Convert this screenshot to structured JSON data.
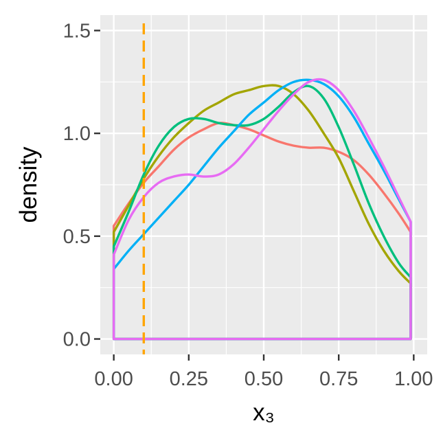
{
  "chart_data": {
    "type": "line",
    "xlabel": "x₃",
    "ylabel": "density",
    "xlim": [
      -0.045,
      1.045
    ],
    "ylim": [
      -0.075,
      1.575
    ],
    "x_ticks": [
      "0.00",
      "0.25",
      "0.50",
      "0.75",
      "1.00"
    ],
    "x_tick_values": [
      0,
      0.25,
      0.5,
      0.75,
      1.0
    ],
    "y_ticks": [
      "0.0",
      "0.5",
      "1.0",
      "1.5"
    ],
    "y_tick_values": [
      0,
      0.5,
      1.0,
      1.5
    ],
    "grid": true,
    "legend": "none",
    "reference_line": {
      "x": 0.1,
      "color": "#FFA500",
      "style": "dashed"
    },
    "x_range": [
      0.0,
      0.99
    ],
    "series": [
      {
        "color": "#F8766D",
        "x": [
          0,
          0.05,
          0.1,
          0.15,
          0.2,
          0.25,
          0.3,
          0.35,
          0.4,
          0.45,
          0.5,
          0.55,
          0.6,
          0.65,
          0.7,
          0.75,
          0.8,
          0.85,
          0.9,
          0.95,
          0.99
        ],
        "y": [
          0.55,
          0.66,
          0.76,
          0.84,
          0.92,
          0.98,
          1.02,
          1.05,
          1.04,
          1.02,
          0.99,
          0.96,
          0.94,
          0.93,
          0.93,
          0.91,
          0.87,
          0.8,
          0.71,
          0.61,
          0.52
        ]
      },
      {
        "color": "#A3A500",
        "x": [
          0,
          0.05,
          0.1,
          0.15,
          0.2,
          0.25,
          0.3,
          0.35,
          0.4,
          0.45,
          0.5,
          0.55,
          0.6,
          0.65,
          0.7,
          0.75,
          0.8,
          0.85,
          0.9,
          0.95,
          0.99
        ],
        "y": [
          0.52,
          0.65,
          0.78,
          0.89,
          0.98,
          1.05,
          1.11,
          1.15,
          1.19,
          1.21,
          1.23,
          1.23,
          1.19,
          1.11,
          1.0,
          0.88,
          0.72,
          0.56,
          0.43,
          0.33,
          0.27
        ]
      },
      {
        "color": "#00BF7D",
        "x": [
          0,
          0.05,
          0.1,
          0.15,
          0.2,
          0.25,
          0.3,
          0.35,
          0.4,
          0.45,
          0.5,
          0.55,
          0.6,
          0.65,
          0.7,
          0.75,
          0.8,
          0.85,
          0.9,
          0.95,
          0.99
        ],
        "y": [
          0.45,
          0.62,
          0.8,
          0.94,
          1.03,
          1.07,
          1.07,
          1.05,
          1.04,
          1.04,
          1.07,
          1.13,
          1.2,
          1.23,
          1.17,
          1.03,
          0.85,
          0.66,
          0.5,
          0.37,
          0.3
        ]
      },
      {
        "color": "#00B0F6",
        "x": [
          0,
          0.05,
          0.1,
          0.15,
          0.2,
          0.25,
          0.3,
          0.35,
          0.4,
          0.45,
          0.5,
          0.55,
          0.6,
          0.65,
          0.7,
          0.75,
          0.8,
          0.85,
          0.9,
          0.95,
          0.99
        ],
        "y": [
          0.34,
          0.43,
          0.51,
          0.59,
          0.67,
          0.75,
          0.84,
          0.93,
          1.01,
          1.09,
          1.15,
          1.21,
          1.25,
          1.26,
          1.24,
          1.18,
          1.08,
          0.95,
          0.82,
          0.68,
          0.57
        ]
      },
      {
        "color": "#E76BF3",
        "x": [
          0,
          0.05,
          0.1,
          0.15,
          0.2,
          0.25,
          0.3,
          0.35,
          0.4,
          0.45,
          0.5,
          0.55,
          0.6,
          0.65,
          0.7,
          0.75,
          0.8,
          0.85,
          0.9,
          0.95,
          0.99
        ],
        "y": [
          0.41,
          0.58,
          0.69,
          0.76,
          0.79,
          0.8,
          0.79,
          0.8,
          0.85,
          0.93,
          1.02,
          1.11,
          1.19,
          1.25,
          1.26,
          1.21,
          1.11,
          0.98,
          0.84,
          0.69,
          0.57
        ]
      }
    ]
  }
}
